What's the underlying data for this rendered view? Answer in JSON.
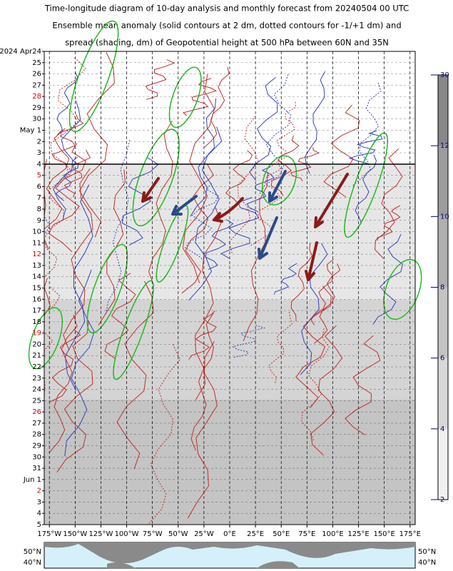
{
  "chart_data": {
    "type": "contour",
    "title_lines": [
      "Time-longitude diagram of 10-day analysis and monthly forecast from 20240504 00 UTC",
      "Ensemble mean anomaly (solid contours at 2 dm, dotted contours for -1/+1 dm) and",
      "spread (shading, dm) of Geopotential height at 500 hPa between 60N and 35N"
    ],
    "categories": [
      "2024 Apr24",
      "25",
      "26",
      "27",
      "28",
      "29",
      "30",
      "May  1",
      "2",
      "3",
      "4",
      "5",
      "6",
      "7",
      "8",
      "9",
      "10",
      "11",
      "12",
      "13",
      "14",
      "15",
      "16",
      "17",
      "18",
      "19",
      "20",
      "21",
      "22",
      "23",
      "24",
      "25",
      "26",
      "27",
      "28",
      "29",
      "30",
      "31",
      "Jun  1",
      "2",
      "3",
      "4",
      "5"
    ],
    "sundays": [
      4,
      11,
      18,
      25,
      32,
      39
    ],
    "sunday_color": "#cc0000",
    "xlim": [
      -180,
      180
    ],
    "xticks": [
      {
        "value": -175,
        "label": "175°W"
      },
      {
        "value": -150,
        "label": "150°W"
      },
      {
        "value": -125,
        "label": "125°W"
      },
      {
        "value": -100,
        "label": "100°W"
      },
      {
        "value": -75,
        "label": "75°W"
      },
      {
        "value": -50,
        "label": "50°W"
      },
      {
        "value": -25,
        "label": "25°W"
      },
      {
        "value": 0,
        "label": "0°E"
      },
      {
        "value": 25,
        "label": "25°E"
      },
      {
        "value": 50,
        "label": "50°E"
      },
      {
        "value": 75,
        "label": "75°E"
      },
      {
        "value": 100,
        "label": "100°E"
      },
      {
        "value": 125,
        "label": "125°E"
      },
      {
        "value": 150,
        "label": "150°E"
      },
      {
        "value": 175,
        "label": "175°E"
      }
    ],
    "grid": true,
    "colorbar": {
      "ticks": [
        2,
        4,
        6,
        8,
        10,
        12,
        30
      ],
      "color": "#000080"
    },
    "map": {
      "left_labels": [
        "50°N",
        "40°N"
      ],
      "right_labels": [
        "50°N",
        "40°N"
      ]
    }
  }
}
